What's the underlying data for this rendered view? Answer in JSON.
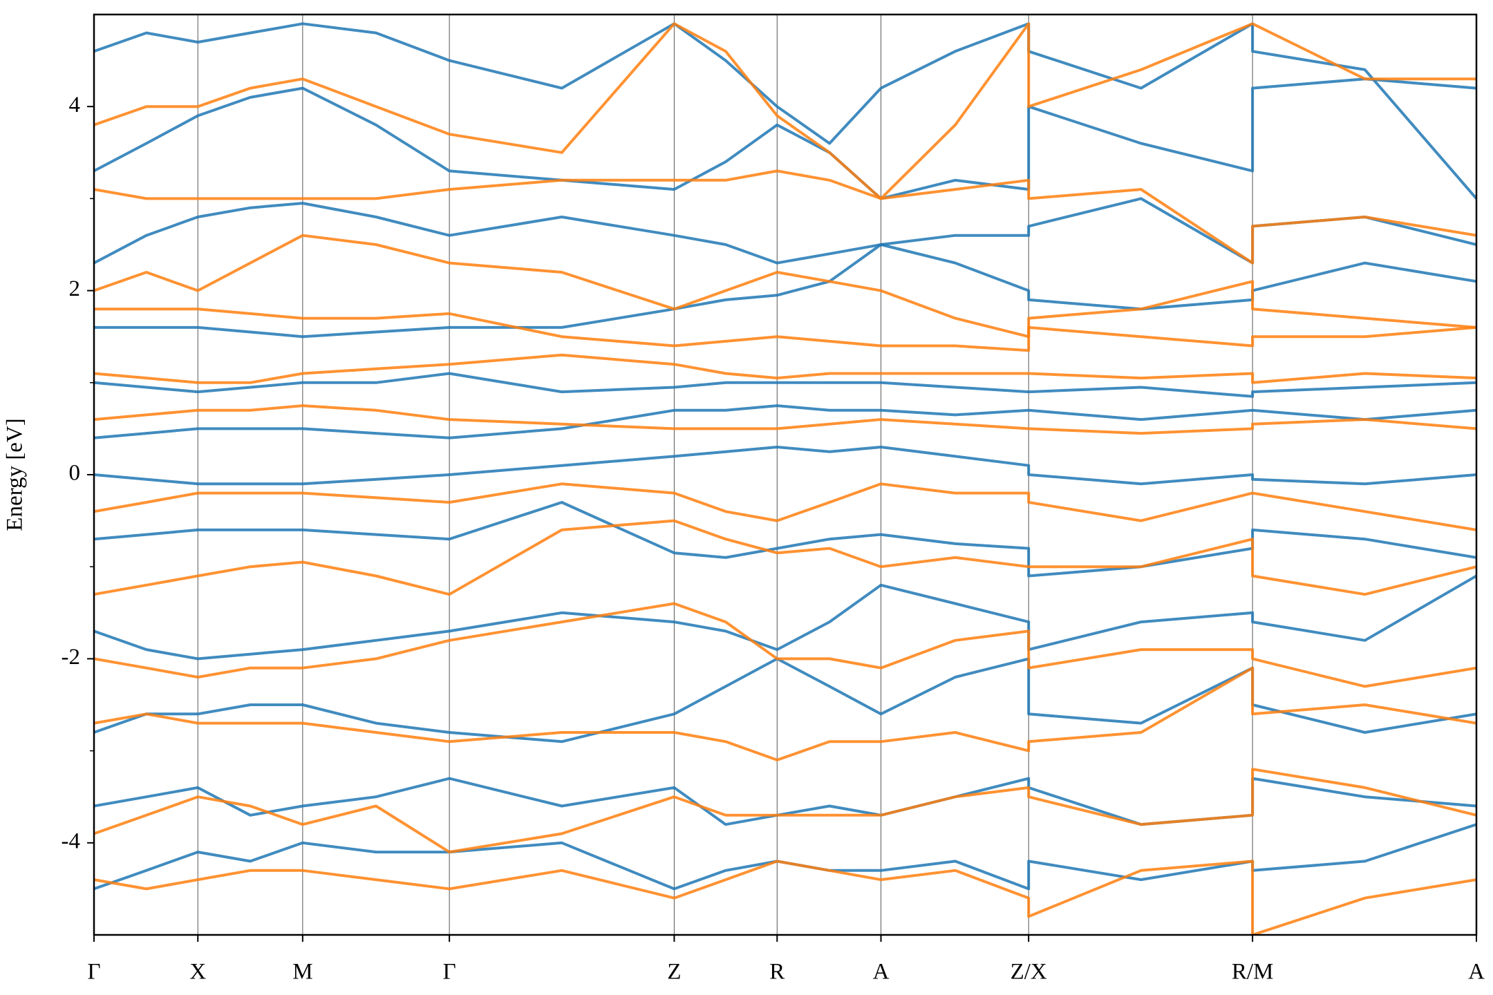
{
  "chart_data": {
    "type": "line",
    "y_label": "Energy [eV]",
    "x": [
      0,
      0.55,
      1.09,
      1.64,
      2.19,
      2.96,
      3.73,
      4.91,
      6.09,
      6.63,
      7.17,
      7.72,
      8.26,
      9.04,
      9.81,
      9.81,
      10.99,
      12.16,
      12.16,
      13.34,
      14.51
    ],
    "xlim": [
      0,
      14.51
    ],
    "xticks": [
      {
        "value": 0,
        "label": "Γ"
      },
      {
        "value": 1.09,
        "label": "X"
      },
      {
        "value": 2.19,
        "label": "M"
      },
      {
        "value": 3.73,
        "label": "Γ"
      },
      {
        "value": 6.09,
        "label": "Z"
      },
      {
        "value": 7.17,
        "label": "R"
      },
      {
        "value": 8.26,
        "label": "A"
      },
      {
        "value": 9.81,
        "label": "Z/X"
      },
      {
        "value": 12.16,
        "label": "R/M"
      },
      {
        "value": 14.51,
        "label": "A"
      }
    ],
    "ylim": [
      -5,
      5
    ],
    "yticks": [
      -4,
      -2,
      0,
      2,
      4
    ],
    "yminorticks": [
      -3,
      -1,
      1,
      3
    ],
    "grid": true,
    "series": [
      {
        "color": "#1f77b4",
        "values": [
          -4.5,
          -4.3,
          -4.1,
          -4.2,
          -4.0,
          -4.1,
          -4.1,
          -4.0,
          -4.5,
          -4.3,
          -4.2,
          -4.3,
          -4.3,
          -4.2,
          -4.5,
          -4.2,
          -4.4,
          -4.2,
          -4.3,
          -4.2,
          -3.8
        ]
      },
      {
        "color": "#1f77b4",
        "values": [
          -3.6,
          -3.5,
          -3.4,
          -3.7,
          -3.6,
          -3.5,
          -3.3,
          -3.6,
          -3.4,
          -3.8,
          -3.7,
          -3.6,
          -3.7,
          -3.5,
          -3.3,
          -3.4,
          -3.8,
          -3.7,
          -3.3,
          -3.5,
          -3.6
        ]
      },
      {
        "color": "#1f77b4",
        "values": [
          -2.8,
          -2.6,
          -2.6,
          -2.5,
          -2.5,
          -2.7,
          -2.8,
          -2.9,
          -2.6,
          -2.3,
          -2.0,
          -2.3,
          -2.6,
          -2.2,
          -2.0,
          -2.6,
          -2.7,
          -2.1,
          -2.5,
          -2.8,
          -2.6
        ]
      },
      {
        "color": "#1f77b4",
        "values": [
          -1.7,
          -1.9,
          -2.0,
          -1.95,
          -1.9,
          -1.8,
          -1.7,
          -1.5,
          -1.6,
          -1.7,
          -1.9,
          -1.6,
          -1.2,
          -1.4,
          -1.6,
          -1.9,
          -1.6,
          -1.5,
          -1.6,
          -1.8,
          -1.1
        ]
      },
      {
        "color": "#1f77b4",
        "values": [
          -0.7,
          -0.65,
          -0.6,
          -0.6,
          -0.6,
          -0.65,
          -0.7,
          -0.3,
          -0.85,
          -0.9,
          -0.8,
          -0.7,
          -0.65,
          -0.75,
          -0.8,
          -1.1,
          -1.0,
          -0.8,
          -0.6,
          -0.7,
          -0.9
        ]
      },
      {
        "color": "#1f77b4",
        "values": [
          0.0,
          -0.05,
          -0.1,
          -0.1,
          -0.1,
          -0.05,
          0.0,
          0.1,
          0.2,
          0.25,
          0.3,
          0.25,
          0.3,
          0.2,
          0.1,
          0.0,
          -0.1,
          0.0,
          -0.05,
          -0.1,
          0.0
        ]
      },
      {
        "color": "#1f77b4",
        "values": [
          0.4,
          0.45,
          0.5,
          0.5,
          0.5,
          0.45,
          0.4,
          0.5,
          0.7,
          0.7,
          0.75,
          0.7,
          0.7,
          0.65,
          0.7,
          0.7,
          0.6,
          0.7,
          0.7,
          0.6,
          0.7
        ]
      },
      {
        "color": "#1f77b4",
        "values": [
          1.0,
          0.95,
          0.9,
          0.95,
          1.0,
          1.0,
          1.1,
          0.9,
          0.95,
          1.0,
          1.0,
          1.0,
          1.0,
          0.95,
          0.9,
          0.9,
          0.95,
          0.85,
          0.9,
          0.95,
          1.0
        ]
      },
      {
        "color": "#1f77b4",
        "values": [
          1.6,
          1.6,
          1.6,
          1.55,
          1.5,
          1.55,
          1.6,
          1.6,
          1.8,
          1.9,
          1.95,
          2.1,
          2.5,
          2.3,
          2.0,
          1.9,
          1.8,
          1.9,
          2.0,
          2.3,
          2.1
        ]
      },
      {
        "color": "#1f77b4",
        "values": [
          2.3,
          2.6,
          2.8,
          2.9,
          2.95,
          2.8,
          2.6,
          2.8,
          2.6,
          2.5,
          2.3,
          2.4,
          2.5,
          2.6,
          2.6,
          2.7,
          3.0,
          2.3,
          2.7,
          2.8,
          2.5
        ]
      },
      {
        "color": "#1f77b4",
        "values": [
          3.3,
          3.6,
          3.9,
          4.1,
          4.2,
          3.8,
          3.3,
          3.2,
          3.1,
          3.4,
          3.8,
          3.5,
          3.0,
          3.2,
          3.1,
          4.0,
          3.6,
          3.3,
          4.2,
          4.3,
          4.2
        ]
      },
      {
        "color": "#1f77b4",
        "values": [
          4.6,
          4.8,
          4.7,
          4.8,
          4.9,
          4.8,
          4.5,
          4.2,
          4.9,
          4.5,
          4.0,
          3.6,
          4.2,
          4.6,
          4.9,
          4.6,
          4.2,
          4.9,
          4.6,
          4.4,
          3.0
        ]
      },
      {
        "color": "#ff7f0e",
        "values": [
          -4.4,
          -4.5,
          -4.4,
          -4.3,
          -4.3,
          -4.4,
          -4.5,
          -4.3,
          -4.6,
          -4.4,
          -4.2,
          -4.3,
          -4.4,
          -4.3,
          -4.6,
          -4.8,
          -4.3,
          -4.2,
          -5.0,
          -4.6,
          -4.4
        ]
      },
      {
        "color": "#ff7f0e",
        "values": [
          -3.9,
          -3.7,
          -3.5,
          -3.6,
          -3.8,
          -3.6,
          -4.1,
          -3.9,
          -3.5,
          -3.7,
          -3.7,
          -3.7,
          -3.7,
          -3.5,
          -3.4,
          -3.5,
          -3.8,
          -3.7,
          -3.2,
          -3.4,
          -3.7
        ]
      },
      {
        "color": "#ff7f0e",
        "values": [
          -2.7,
          -2.6,
          -2.7,
          -2.7,
          -2.7,
          -2.8,
          -2.9,
          -2.8,
          -2.8,
          -2.9,
          -3.1,
          -2.9,
          -2.9,
          -2.8,
          -3.0,
          -2.9,
          -2.8,
          -2.1,
          -2.6,
          -2.5,
          -2.7
        ]
      },
      {
        "color": "#ff7f0e",
        "values": [
          -2.0,
          -2.1,
          -2.2,
          -2.1,
          -2.1,
          -2.0,
          -1.8,
          -1.6,
          -1.4,
          -1.6,
          -2.0,
          -2.0,
          -2.1,
          -1.8,
          -1.7,
          -2.1,
          -1.9,
          -1.9,
          -2.0,
          -2.3,
          -2.1
        ]
      },
      {
        "color": "#ff7f0e",
        "values": [
          -1.3,
          -1.2,
          -1.1,
          -1.0,
          -0.95,
          -1.1,
          -1.3,
          -0.6,
          -0.5,
          -0.7,
          -0.85,
          -0.8,
          -1.0,
          -0.9,
          -1.0,
          -1.0,
          -1.0,
          -0.7,
          -1.1,
          -1.3,
          -1.0
        ]
      },
      {
        "color": "#ff7f0e",
        "values": [
          -0.4,
          -0.3,
          -0.2,
          -0.2,
          -0.2,
          -0.25,
          -0.3,
          -0.1,
          -0.2,
          -0.4,
          -0.5,
          -0.3,
          -0.1,
          -0.2,
          -0.2,
          -0.3,
          -0.5,
          -0.2,
          -0.2,
          -0.4,
          -0.6
        ]
      },
      {
        "color": "#ff7f0e",
        "values": [
          0.6,
          0.65,
          0.7,
          0.7,
          0.75,
          0.7,
          0.6,
          0.55,
          0.5,
          0.5,
          0.5,
          0.55,
          0.6,
          0.55,
          0.5,
          0.5,
          0.45,
          0.5,
          0.55,
          0.6,
          0.5
        ]
      },
      {
        "color": "#ff7f0e",
        "values": [
          1.1,
          1.05,
          1.0,
          1.0,
          1.1,
          1.15,
          1.2,
          1.3,
          1.2,
          1.1,
          1.05,
          1.1,
          1.1,
          1.1,
          1.1,
          1.1,
          1.05,
          1.1,
          1.0,
          1.1,
          1.05
        ]
      },
      {
        "color": "#ff7f0e",
        "values": [
          1.8,
          1.8,
          1.8,
          1.75,
          1.7,
          1.7,
          1.75,
          1.5,
          1.4,
          1.45,
          1.5,
          1.45,
          1.4,
          1.4,
          1.35,
          1.6,
          1.5,
          1.4,
          1.5,
          1.5,
          1.6
        ]
      },
      {
        "color": "#ff7f0e",
        "values": [
          2.0,
          2.2,
          2.0,
          2.3,
          2.6,
          2.5,
          2.3,
          2.2,
          1.8,
          2.0,
          2.2,
          2.1,
          2.0,
          1.7,
          1.5,
          1.7,
          1.8,
          2.1,
          1.8,
          1.7,
          1.6
        ]
      },
      {
        "color": "#ff7f0e",
        "values": [
          3.1,
          3.0,
          3.0,
          3.0,
          3.0,
          3.0,
          3.1,
          3.2,
          3.2,
          3.2,
          3.3,
          3.2,
          3.0,
          3.1,
          3.2,
          3.0,
          3.1,
          2.3,
          2.7,
          2.8,
          2.6
        ]
      },
      {
        "color": "#ff7f0e",
        "values": [
          3.8,
          4.0,
          4.0,
          4.2,
          4.3,
          4.0,
          3.7,
          3.5,
          4.9,
          4.6,
          3.9,
          3.5,
          3.0,
          3.8,
          4.9,
          4.0,
          4.4,
          4.9,
          4.9,
          4.3,
          4.3
        ]
      }
    ]
  }
}
